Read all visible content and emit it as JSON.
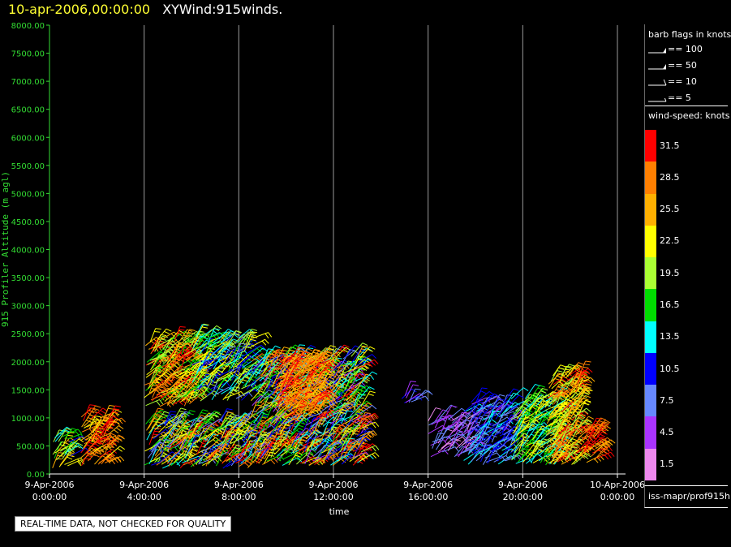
{
  "title": {
    "time": "10-apr-2006,00:00:00",
    "main": "XYWind:915winds."
  },
  "notice": "REAL-TIME DATA, NOT CHECKED FOR QUALITY",
  "legend": {
    "barb_title": "barb flags in knots",
    "barbs": [
      {
        "label": "== 100",
        "kind": "flag"
      },
      {
        "label": "== 50",
        "kind": "flag"
      },
      {
        "label": "== 10",
        "kind": "full"
      },
      {
        "label": "== 5",
        "kind": "half"
      }
    ],
    "speed_title": "wind-speed: knots",
    "footer": "iss-mapr/prof915h",
    "scale": [
      {
        "label": "31.5",
        "color": "#ff0000"
      },
      {
        "label": "28.5",
        "color": "#ff7f00"
      },
      {
        "label": "25.5",
        "color": "#ffb000"
      },
      {
        "label": "22.5",
        "color": "#ffff00"
      },
      {
        "label": "19.5",
        "color": "#aaff33"
      },
      {
        "label": "16.5",
        "color": "#00dd00"
      },
      {
        "label": "13.5",
        "color": "#00ffff"
      },
      {
        "label": "10.5",
        "color": "#0000ff"
      },
      {
        "label": "7.5",
        "color": "#6688ff"
      },
      {
        "label": "4.5",
        "color": "#aa33ff"
      },
      {
        "label": "1.5",
        "color": "#ee88ee"
      }
    ]
  },
  "chart_data": {
    "type": "wind-barb-time-height",
    "ylabel": "915 Profiler Altitude (m agl)",
    "xlabel": "time",
    "ylim": [
      0,
      8000
    ],
    "yticks": [
      "0.00",
      "500.00",
      "1000.00",
      "1500.00",
      "2000.00",
      "2500.00",
      "3000.00",
      "3500.00",
      "4000.00",
      "4500.00",
      "5000.00",
      "5500.00",
      "6000.00",
      "6500.00",
      "7000.00",
      "7500.00",
      "8000.00"
    ],
    "xlim": [
      0,
      24
    ],
    "xticks": [
      {
        "hour": 0,
        "date": "9-Apr-2006",
        "time": "0:00:00"
      },
      {
        "hour": 4,
        "date": "9-Apr-2006",
        "time": "4:00:00"
      },
      {
        "hour": 8,
        "date": "9-Apr-2006",
        "time": "8:00:00"
      },
      {
        "hour": 12,
        "date": "9-Apr-2006",
        "time": "12:00:00"
      },
      {
        "hour": 16,
        "date": "9-Apr-2006",
        "time": "16:00:00"
      },
      {
        "hour": 20,
        "date": "9-Apr-2006",
        "time": "20:00:00"
      },
      {
        "hour": 24,
        "date": "10-Apr-2006",
        "time": "0:00:00"
      }
    ],
    "grid": "vertical at ticks",
    "clusters": [
      {
        "t0": 0.1,
        "t1": 0.9,
        "h0": 100,
        "h1": 700,
        "s0": 10,
        "s1": 26
      },
      {
        "t0": 1.3,
        "t1": 2.5,
        "h0": 150,
        "h1": 1050,
        "s0": 22,
        "s1": 32
      },
      {
        "t0": 4.0,
        "t1": 8.5,
        "h0": 100,
        "h1": 950,
        "s0": 6,
        "s1": 32
      },
      {
        "t0": 4.0,
        "t1": 6.2,
        "h0": 1200,
        "h1": 2400,
        "s0": 16,
        "s1": 32
      },
      {
        "t0": 6.0,
        "t1": 8.6,
        "h0": 1300,
        "h1": 2450,
        "s0": 8,
        "s1": 24
      },
      {
        "t0": 8.5,
        "t1": 13.2,
        "h0": 150,
        "h1": 2100,
        "s0": 4,
        "s1": 32
      },
      {
        "t0": 9.5,
        "t1": 11.5,
        "h0": 1000,
        "h1": 2050,
        "s0": 24,
        "s1": 32
      },
      {
        "t0": 14.8,
        "t1": 15.5,
        "h0": 1250,
        "h1": 1400,
        "s0": 2,
        "s1": 12
      },
      {
        "t0": 16.0,
        "t1": 17.8,
        "h0": 300,
        "h1": 1000,
        "s0": 2,
        "s1": 9
      },
      {
        "t0": 17.5,
        "t1": 19.5,
        "h0": 150,
        "h1": 1300,
        "s0": 5,
        "s1": 14
      },
      {
        "t0": 19.5,
        "t1": 21.5,
        "h0": 150,
        "h1": 1350,
        "s0": 12,
        "s1": 24
      },
      {
        "t0": 21.0,
        "t1": 22.4,
        "h0": 150,
        "h1": 1800,
        "s0": 18,
        "s1": 32
      },
      {
        "t0": 22.4,
        "t1": 23.2,
        "h0": 200,
        "h1": 800,
        "s0": 26,
        "s1": 32
      }
    ]
  }
}
